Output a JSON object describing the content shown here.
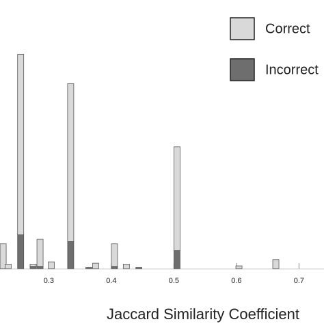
{
  "chart_data": {
    "type": "bar",
    "x_label": "Jaccard Similarity Coefficient",
    "x": [
      0.227,
      0.235,
      0.255,
      0.275,
      0.286,
      0.304,
      0.335,
      0.364,
      0.375,
      0.405,
      0.424,
      0.444,
      0.505,
      0.604,
      0.663
    ],
    "series": [
      {
        "name": "Incorrect",
        "color": "#6e6e6e",
        "values": [
          0,
          0,
          15,
          1,
          1,
          0,
          12,
          0.5,
          0,
          1,
          0,
          0.5,
          8,
          0,
          0
        ]
      },
      {
        "name": "Correct",
        "color": "#d9d9d9",
        "values": [
          11,
          2,
          80,
          1,
          12,
          3,
          70,
          0,
          2.4,
          10,
          2,
          0,
          46,
          1.2,
          4
        ]
      }
    ],
    "stacked": true,
    "xlim": [
      0.222,
      0.74
    ],
    "xticks": [
      0.3,
      0.4,
      0.5,
      0.6,
      0.7
    ],
    "ylim": [
      0,
      100
    ]
  }
}
